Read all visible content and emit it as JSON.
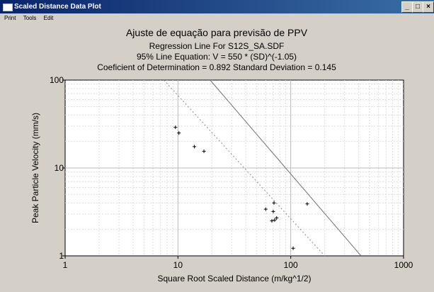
{
  "window": {
    "title": "Scaled Distance Data Plot",
    "buttons": [
      "_",
      "□",
      "×"
    ]
  },
  "menu": [
    "Print",
    "Tools",
    "Edit"
  ],
  "chart_data": {
    "type": "scatter",
    "title": "Ajuste de equação para previsão de PPV",
    "subtitles": [
      "Regression Line For S12S_SA.SDF",
      "95% Line Equation: V = 550 * (SD)^(-1.05)",
      "Coeficient of Determination = 0.892  Standard Deviation = 0.145"
    ],
    "xlabel": "Square Root Scaled Distance (m/kg^1/2)",
    "ylabel": "Peak Particle Velocity (mm/s)",
    "x_scale": "log",
    "y_scale": "log",
    "xlim": [
      1,
      1000
    ],
    "ylim": [
      1,
      100
    ],
    "x_ticks": [
      "1",
      "10",
      "100",
      "1000"
    ],
    "y_ticks": [
      "1",
      "10",
      "100"
    ],
    "grid": true,
    "points": [
      {
        "x": 9.5,
        "y": 29
      },
      {
        "x": 10.2,
        "y": 25
      },
      {
        "x": 14,
        "y": 17.5
      },
      {
        "x": 17,
        "y": 15.5
      },
      {
        "x": 60,
        "y": 3.4
      },
      {
        "x": 68,
        "y": 2.5
      },
      {
        "x": 70,
        "y": 3.2
      },
      {
        "x": 71,
        "y": 4
      },
      {
        "x": 72,
        "y": 2.55
      },
      {
        "x": 75,
        "y": 2.7
      },
      {
        "x": 105,
        "y": 1.22
      },
      {
        "x": 140,
        "y": 3.9
      }
    ],
    "lines": [
      {
        "style": "solid",
        "points": [
          [
            19.3,
            100
          ],
          [
            420,
            1
          ]
        ]
      },
      {
        "style": "dotted",
        "points": [
          [
            7.5,
            100
          ],
          [
            200,
            1
          ]
        ]
      }
    ]
  }
}
